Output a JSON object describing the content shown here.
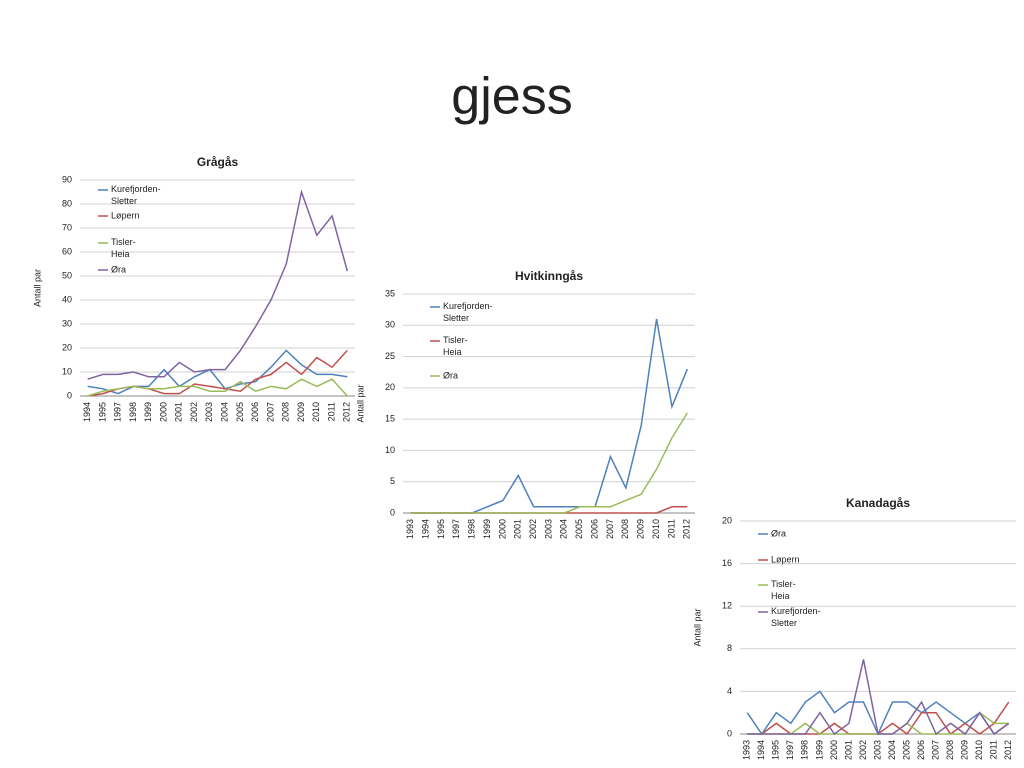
{
  "title": "gjess",
  "chart_data": [
    {
      "type": "line",
      "title": "Grågås",
      "y_label": "Antall par",
      "categories": [
        "1994",
        "1995",
        "1997",
        "1998",
        "1999",
        "2000",
        "2001",
        "2002",
        "2003",
        "2004",
        "2005",
        "2006",
        "2007",
        "2008",
        "2009",
        "2010",
        "2011",
        "2012"
      ],
      "ylim": [
        0,
        90
      ],
      "yticks": [
        0,
        10,
        20,
        30,
        40,
        50,
        60,
        70,
        80,
        90
      ],
      "grid": true,
      "series": [
        {
          "name": "Kurefjorden-Sletter",
          "color": "#4f81bd",
          "values": [
            4,
            3,
            1,
            4,
            4,
            11,
            4,
            8,
            11,
            3,
            5,
            6,
            12,
            19,
            13,
            9,
            9,
            8
          ]
        },
        {
          "name": "Løpern",
          "color": "#c0504d",
          "values": [
            0,
            1,
            3,
            4,
            3,
            1,
            1,
            5,
            4,
            3,
            2,
            7,
            9,
            14,
            9,
            16,
            12,
            19
          ]
        },
        {
          "name": "Tisler-Heia",
          "color": "#9bbb59",
          "values": [
            0,
            2,
            3,
            4,
            3,
            3,
            4,
            4,
            2,
            2,
            6,
            2,
            4,
            3,
            7,
            4,
            7,
            0
          ]
        },
        {
          "name": "Øra",
          "color": "#8064a2",
          "values": [
            7,
            9,
            9,
            10,
            8,
            8,
            14,
            10,
            11,
            11,
            19,
            29,
            40,
            55,
            85,
            67,
            75,
            52
          ]
        }
      ]
    },
    {
      "type": "line",
      "title": "Hvitkinngås",
      "y_label": "Antall par",
      "categories": [
        "1993",
        "1994",
        "1995",
        "1997",
        "1998",
        "1999",
        "2000",
        "2001",
        "2002",
        "2003",
        "2004",
        "2005",
        "2006",
        "2007",
        "2008",
        "2009",
        "2010",
        "2011",
        "2012"
      ],
      "ylim": [
        0,
        35
      ],
      "yticks": [
        0,
        5,
        10,
        15,
        20,
        25,
        30,
        35
      ],
      "grid": true,
      "series": [
        {
          "name": "Kurefjorden-Sletter",
          "color": "#4f81bd",
          "values": [
            0,
            0,
            0,
            0,
            0,
            1,
            2,
            6,
            1,
            1,
            1,
            1,
            1,
            9,
            4,
            14,
            31,
            17,
            23
          ]
        },
        {
          "name": "Tisler-Heia",
          "color": "#c0504d",
          "values": [
            0,
            0,
            0,
            0,
            0,
            0,
            0,
            0,
            0,
            0,
            0,
            0,
            0,
            0,
            0,
            0,
            0,
            1,
            1
          ]
        },
        {
          "name": "Øra",
          "color": "#9bbb59",
          "values": [
            0,
            0,
            0,
            0,
            0,
            0,
            0,
            0,
            0,
            0,
            0,
            1,
            1,
            1,
            2,
            3,
            7,
            12,
            16
          ]
        }
      ]
    },
    {
      "type": "line",
      "title": "Kanadagås",
      "y_label": "Antall par",
      "categories": [
        "1993",
        "1994",
        "1995",
        "1997",
        "1998",
        "1999",
        "2000",
        "2001",
        "2002",
        "2003",
        "2004",
        "2005",
        "2006",
        "2007",
        "2008",
        "2009",
        "2010",
        "2011",
        "2012"
      ],
      "ylim": [
        0,
        20
      ],
      "yticks": [
        0,
        4,
        8,
        12,
        16,
        20
      ],
      "grid": true,
      "series": [
        {
          "name": "Øra",
          "color": "#4f81bd",
          "values": [
            2,
            0,
            2,
            1,
            3,
            4,
            2,
            3,
            3,
            0,
            3,
            3,
            2,
            3,
            2,
            1,
            2,
            0,
            1
          ]
        },
        {
          "name": "Løpern",
          "color": "#c0504d",
          "values": [
            0,
            0,
            1,
            0,
            0,
            0,
            1,
            0,
            0,
            0,
            1,
            0,
            2,
            2,
            0,
            1,
            0,
            1,
            3
          ]
        },
        {
          "name": "Tisler-Heia",
          "color": "#9bbb59",
          "values": [
            0,
            0,
            0,
            0,
            1,
            0,
            0,
            0,
            0,
            0,
            0,
            1,
            0,
            0,
            0,
            0,
            2,
            1,
            1
          ]
        },
        {
          "name": "Kurefjorden-Sletter",
          "color": "#8064a2",
          "values": [
            0,
            0,
            0,
            0,
            0,
            2,
            0,
            1,
            7,
            0,
            0,
            1,
            3,
            0,
            1,
            0,
            2,
            0,
            1
          ]
        }
      ]
    }
  ]
}
